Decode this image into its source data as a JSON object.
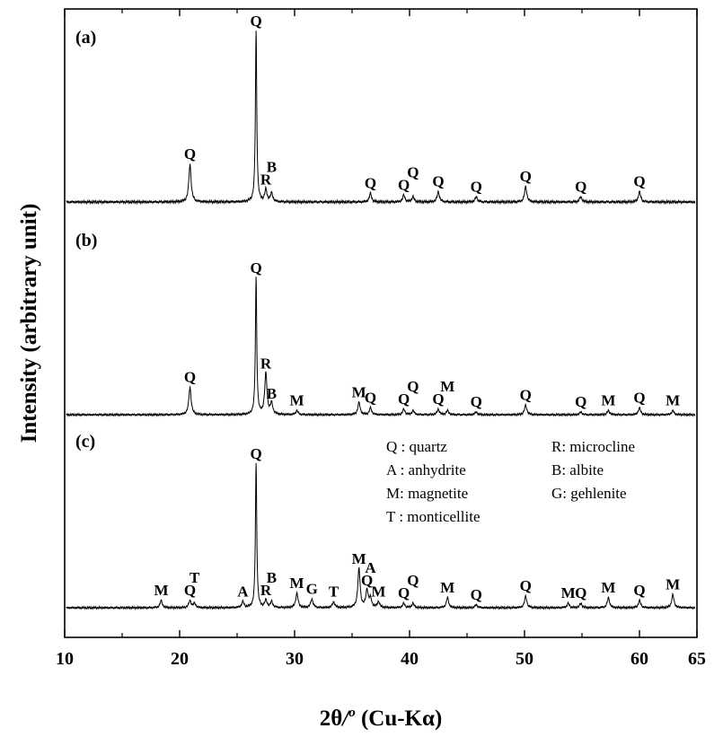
{
  "chart_data": {
    "type": "line",
    "xlabel": "2θ/ o (Cu-Kα)",
    "xlabel_parts": {
      "theta": "2θ",
      "slash": "/",
      "degree": "o",
      "radiation": " (Cu-Kα)"
    },
    "ylabel": "Intensity (arbitrary unit)",
    "xlim": [
      10,
      65
    ],
    "x_ticks": [
      10,
      20,
      30,
      40,
      50,
      60,
      65
    ],
    "x_minor_ticks": [
      15,
      25,
      35,
      45,
      55
    ],
    "grid": false,
    "legend_position": "inside panel (c), top-right",
    "legend": [
      {
        "code": "Q",
        "text": "Q : quartz"
      },
      {
        "code": "R",
        "text": "R: microcline"
      },
      {
        "code": "A",
        "text": "A : anhydrite"
      },
      {
        "code": "B",
        "text": "B: albite"
      },
      {
        "code": "M",
        "text": "M: magnetite"
      },
      {
        "code": "G",
        "text": "G: gehlenite"
      },
      {
        "code": "T",
        "text": "T : monticellite"
      }
    ],
    "series": [
      {
        "panel": "(a)",
        "peaks": [
          {
            "x": 20.9,
            "h": 0.22,
            "label": "Q"
          },
          {
            "x": 26.65,
            "h": 1.0,
            "label": "Q"
          },
          {
            "x": 27.5,
            "h": 0.07,
            "label": "R"
          },
          {
            "x": 28.0,
            "h": 0.05,
            "label": "B"
          },
          {
            "x": 36.6,
            "h": 0.05,
            "label": "Q"
          },
          {
            "x": 39.5,
            "h": 0.04,
            "label": "Q"
          },
          {
            "x": 40.3,
            "h": 0.03,
            "label": "Q"
          },
          {
            "x": 42.5,
            "h": 0.06,
            "label": "Q"
          },
          {
            "x": 45.8,
            "h": 0.03,
            "label": "Q"
          },
          {
            "x": 50.1,
            "h": 0.09,
            "label": "Q"
          },
          {
            "x": 54.9,
            "h": 0.03,
            "label": "Q"
          },
          {
            "x": 60.0,
            "h": 0.06,
            "label": "Q"
          }
        ]
      },
      {
        "panel": "(b)",
        "peaks": [
          {
            "x": 20.9,
            "h": 0.2,
            "label": "Q"
          },
          {
            "x": 26.65,
            "h": 1.0,
            "label": "Q"
          },
          {
            "x": 27.5,
            "h": 0.3,
            "label": "R"
          },
          {
            "x": 28.0,
            "h": 0.08,
            "label": "B"
          },
          {
            "x": 30.2,
            "h": 0.03,
            "label": "M"
          },
          {
            "x": 35.6,
            "h": 0.09,
            "label": "M"
          },
          {
            "x": 36.6,
            "h": 0.05,
            "label": "Q"
          },
          {
            "x": 39.5,
            "h": 0.04,
            "label": "Q"
          },
          {
            "x": 40.3,
            "h": 0.03,
            "label": "Q"
          },
          {
            "x": 42.5,
            "h": 0.04,
            "label": "Q"
          },
          {
            "x": 43.3,
            "h": 0.03,
            "label": "M"
          },
          {
            "x": 45.8,
            "h": 0.02,
            "label": "Q"
          },
          {
            "x": 50.1,
            "h": 0.07,
            "label": "Q"
          },
          {
            "x": 54.9,
            "h": 0.02,
            "label": "Q"
          },
          {
            "x": 57.3,
            "h": 0.03,
            "label": "M"
          },
          {
            "x": 60.0,
            "h": 0.05,
            "label": "Q"
          },
          {
            "x": 62.9,
            "h": 0.03,
            "label": "M"
          }
        ]
      },
      {
        "panel": "(c)",
        "peaks": [
          {
            "x": 18.4,
            "h": 0.05,
            "label": "M"
          },
          {
            "x": 20.9,
            "h": 0.05,
            "label": "Q"
          },
          {
            "x": 21.3,
            "h": 0.03,
            "label": "T"
          },
          {
            "x": 25.5,
            "h": 0.04,
            "label": "A"
          },
          {
            "x": 26.65,
            "h": 1.0,
            "label": "Q"
          },
          {
            "x": 27.5,
            "h": 0.05,
            "label": "R"
          },
          {
            "x": 28.0,
            "h": 0.04,
            "label": "B"
          },
          {
            "x": 30.2,
            "h": 0.1,
            "label": "M"
          },
          {
            "x": 31.5,
            "h": 0.06,
            "label": "G"
          },
          {
            "x": 33.4,
            "h": 0.04,
            "label": "T"
          },
          {
            "x": 35.6,
            "h": 0.27,
            "label": "M"
          },
          {
            "x": 36.3,
            "h": 0.12,
            "label": "Q"
          },
          {
            "x": 36.6,
            "h": 0.06,
            "label": "A"
          },
          {
            "x": 37.3,
            "h": 0.04,
            "label": "M"
          },
          {
            "x": 39.5,
            "h": 0.03,
            "label": "Q"
          },
          {
            "x": 40.3,
            "h": 0.03,
            "label": "Q"
          },
          {
            "x": 43.3,
            "h": 0.07,
            "label": "M"
          },
          {
            "x": 45.8,
            "h": 0.02,
            "label": "Q"
          },
          {
            "x": 50.1,
            "h": 0.08,
            "label": "Q"
          },
          {
            "x": 53.8,
            "h": 0.03,
            "label": "M"
          },
          {
            "x": 54.9,
            "h": 0.03,
            "label": "Q"
          },
          {
            "x": 57.3,
            "h": 0.07,
            "label": "M"
          },
          {
            "x": 60.0,
            "h": 0.05,
            "label": "Q"
          },
          {
            "x": 62.9,
            "h": 0.09,
            "label": "M"
          }
        ]
      }
    ]
  }
}
